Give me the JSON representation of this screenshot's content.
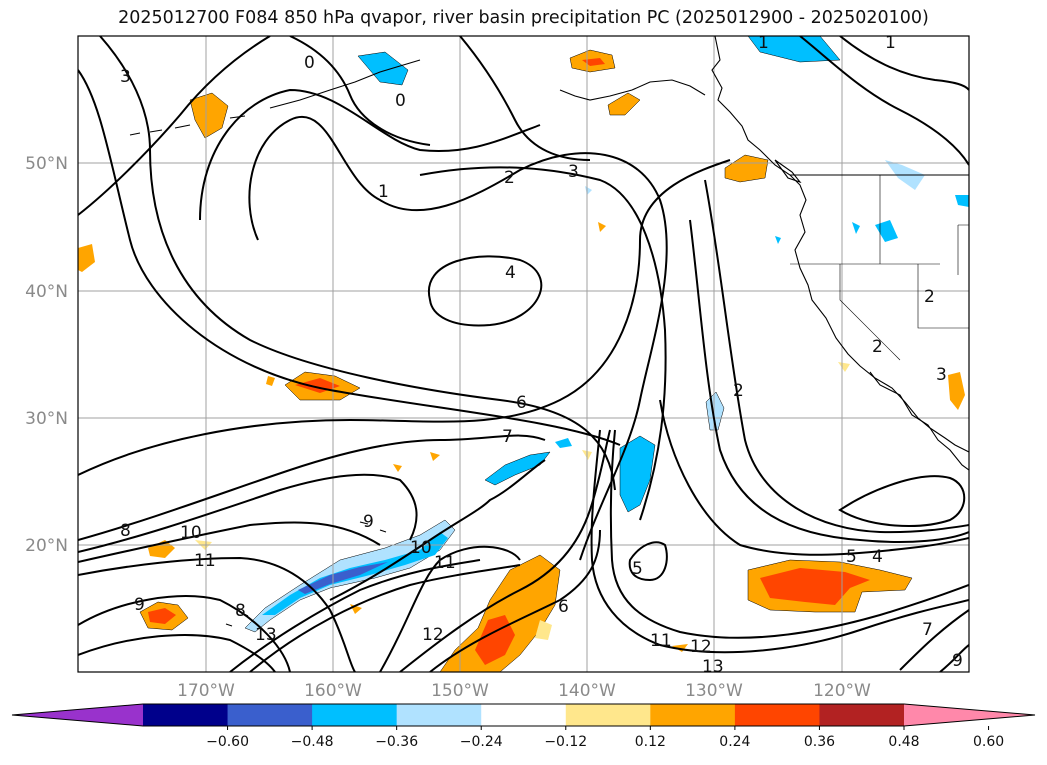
{
  "title": "2025012700 F084 850 hPa qvapor, river basin precipitation PC (2025012900 - 2025020100)",
  "latitude_labels": [
    "50°N",
    "40°N",
    "30°N",
    "20°N"
  ],
  "longitude_labels": [
    "170°W",
    "160°W",
    "150°W",
    "140°W",
    "130°W",
    "120°W"
  ],
  "colorbar": {
    "tick_labels": [
      "−0.60",
      "−0.48",
      "−0.36",
      "−0.24",
      "−0.12",
      "0.12",
      "0.24",
      "0.36",
      "0.48",
      "0.60"
    ],
    "colors": [
      "#9932cc",
      "#00008b",
      "#3a5fcd",
      "#00bfff",
      "#b0e2ff",
      "#ffffff",
      "#ffe78c",
      "#ffa500",
      "#ff4500",
      "#b22222",
      "#ff88aa"
    ]
  },
  "contour_labels": [
    "1",
    "1",
    "3",
    "0",
    "0",
    "2",
    "3",
    "1",
    "4",
    "6",
    "7",
    "8",
    "10",
    "11",
    "9",
    "8",
    "9",
    "10",
    "11",
    "12",
    "13",
    "6",
    "5",
    "11",
    "12",
    "13",
    "2",
    "2",
    "2",
    "3",
    "4",
    "5",
    "7",
    "9"
  ]
}
